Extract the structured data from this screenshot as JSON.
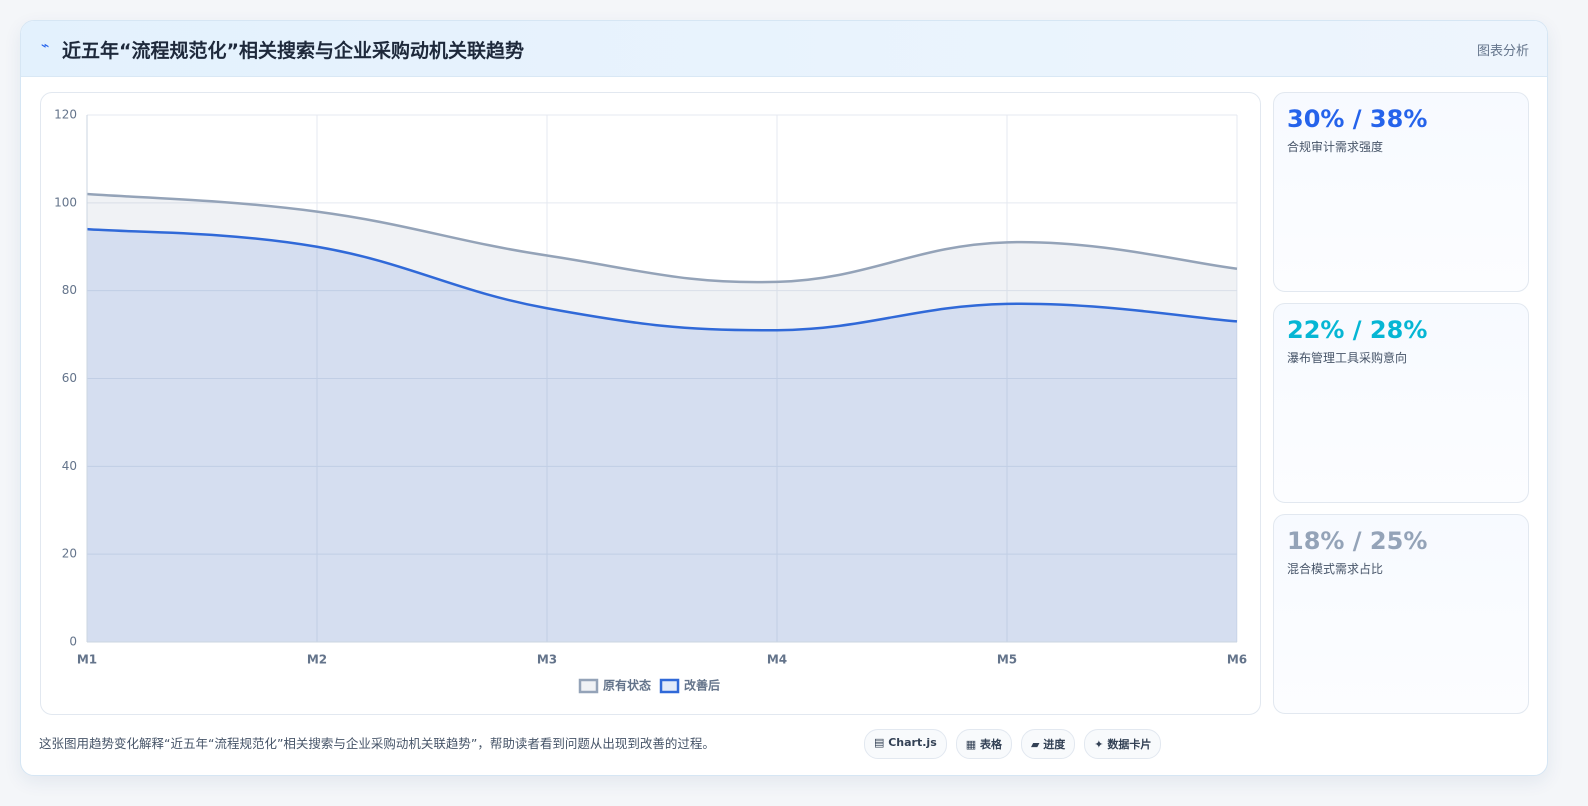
{
  "header": {
    "title": "近五年“流程规范化”相关搜索与企业采购动机关联趋势",
    "tag": "图表分析"
  },
  "chart_data": {
    "type": "line",
    "categories": [
      "M1",
      "M2",
      "M3",
      "M4",
      "M5",
      "M6"
    ],
    "series": [
      {
        "name": "原有状态",
        "color": "#94a3b8",
        "fill": "rgba(148,163,184,0.14)",
        "values": [
          102,
          98,
          88,
          82,
          91,
          85
        ]
      },
      {
        "name": "改善后",
        "color": "#3069d8",
        "fill": "rgba(48,105,216,0.14)",
        "values": [
          94,
          90,
          76,
          71,
          77,
          73
        ]
      }
    ],
    "ylim": [
      0,
      120
    ],
    "yticks": [
      0,
      20,
      40,
      60,
      80,
      100,
      120
    ],
    "grid": true,
    "legend": "bottom"
  },
  "cards": [
    {
      "value": "30% / 38%",
      "label": "合规审计需求强度",
      "color": "#2563eb"
    },
    {
      "value": "22% / 28%",
      "label": "瀑布管理工具采购意向",
      "color": "#06b6d4"
    },
    {
      "value": "18% / 25%",
      "label": "混合模式需求占比",
      "color": "#94a3b8"
    }
  ],
  "footer": {
    "note": "这张图用趋势变化解释“近五年“流程规范化”相关搜索与企业采购动机关联趋势”，帮助读者看到问题从出现到改善的过程。",
    "buttons": [
      "Chart.js",
      "表格",
      "进度",
      "数据卡片"
    ]
  }
}
